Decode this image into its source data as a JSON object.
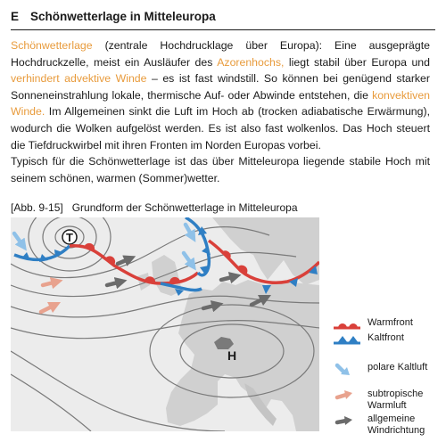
{
  "header": {
    "section": "E",
    "title": "Schönwetterlage in Mitteleuropa"
  },
  "paragraph1": [
    {
      "text": "Schönwetterlage",
      "hl": true
    },
    {
      "text": " (zentrale Hochdrucklage über Europa): Eine ausgeprägte Hochdruckzelle, meist ein Ausläufer des ",
      "hl": false
    },
    {
      "text": "Azorenhochs,",
      "hl": true
    },
    {
      "text": " liegt stabil über Europa und ",
      "hl": false
    },
    {
      "text": "verhindert advektive Winde",
      "hl": true
    },
    {
      "text": " – es ist fast windstill. So können bei genügend starker Sonneneinstrahlung lokale, thermische Auf- oder Abwinde entstehen, die ",
      "hl": false
    },
    {
      "text": "konvektiven Winde.",
      "hl": true
    },
    {
      "text": " Im Allgemeinen sinkt die Luft im Hoch ab (trocken adiabatische Erwärmung), wodurch die Wolken aufgelöst werden. Es ist also fast wolkenlos. Das Hoch steuert die Tiefdruckwirbel mit ihren Fronten im Norden Europas vorbei.",
      "hl": false
    }
  ],
  "paragraph2": "Typisch für die Schönwetterlage ist das über Mitteleuropa liegende stabile Hoch mit seinem schönen, warmen (Sommer)wetter.",
  "caption": {
    "number": "[Abb. 9-15]",
    "text": "Grundform der Schönwetterlage in Mitteleuropa"
  },
  "map": {
    "low_label": "T",
    "high_label": "H"
  },
  "legend": [
    {
      "key": "warm_front",
      "label": "Warmfront"
    },
    {
      "key": "cold_front",
      "label": "Kaltfront"
    },
    {
      "key": "polar_air",
      "label": "polare Kaltluft"
    },
    {
      "key": "subtropical_air",
      "label": "subtropische Warmluft"
    },
    {
      "key": "wind_direction",
      "label": "allgemeine Windrichtung"
    }
  ],
  "colors": {
    "highlight": "#e89b3c",
    "warm_front": "#d9403a",
    "cold_front": "#2f7fc4",
    "polar_arrow": "#8fc1e8",
    "subtropical_arrow": "#e8a28e",
    "wind_arrow": "#6b6b6b",
    "land": "#d0d0d0",
    "sea": "#ececec",
    "isobar": "#7a7a7a"
  }
}
